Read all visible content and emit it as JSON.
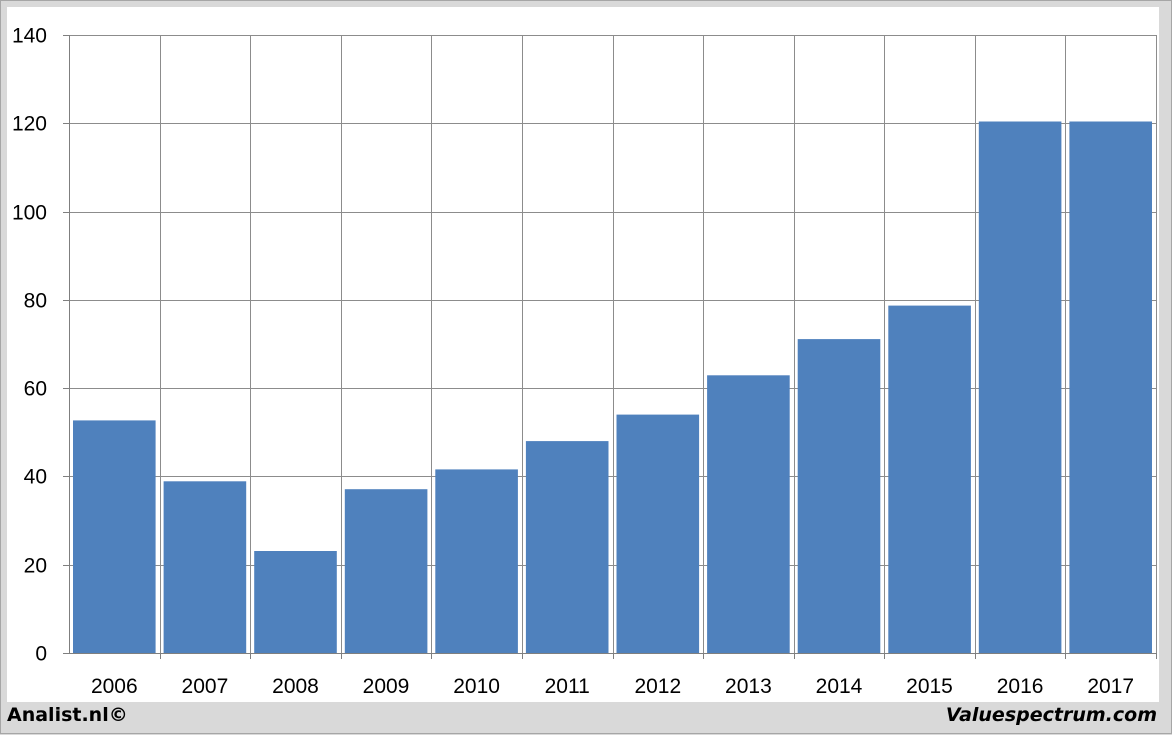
{
  "chart_data": {
    "type": "bar",
    "categories": [
      "2006",
      "2007",
      "2008",
      "2009",
      "2010",
      "2011",
      "2012",
      "2013",
      "2014",
      "2015",
      "2016",
      "2017"
    ],
    "values": [
      52.7,
      38.9,
      23.1,
      37.1,
      41.6,
      48.0,
      54.0,
      62.9,
      71.1,
      78.7,
      120.4,
      120.4
    ],
    "y_ticks": [
      0,
      20,
      40,
      60,
      80,
      100,
      120,
      140
    ],
    "ylim": [
      0,
      140
    ],
    "grid": true,
    "bar_color": "#4f81bd",
    "gridline_color": "#8c8c8c"
  },
  "footer": {
    "left_text": "Analist.nl©",
    "right_text": "Valuespectrum.com"
  }
}
